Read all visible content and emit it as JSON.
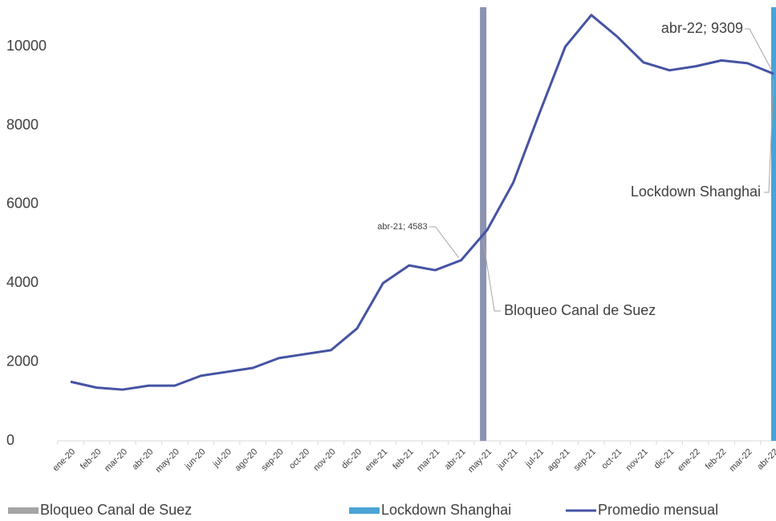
{
  "chart_data": {
    "type": "line",
    "categories": [
      "ene-20",
      "feb-20",
      "mar-20",
      "abr-20",
      "may-20",
      "jun-20",
      "jul-20",
      "ago-20",
      "sep-20",
      "oct-20",
      "nov-20",
      "dic-20",
      "ene-21",
      "feb-21",
      "mar-21",
      "abr-21",
      "may-21",
      "jun-21",
      "jul-21",
      "ago-21",
      "sep-21",
      "oct-21",
      "nov-21",
      "dic-21",
      "ene-22",
      "feb-22",
      "mar-22",
      "abr-22"
    ],
    "series": [
      {
        "name": "Bloqueo Canal de Suez",
        "type": "bar",
        "color": "#8a93b0",
        "legend_color": "#a5a5a5",
        "values": [
          null,
          null,
          null,
          null,
          null,
          null,
          null,
          null,
          null,
          null,
          null,
          null,
          null,
          null,
          null,
          null,
          11000,
          null,
          null,
          null,
          null,
          null,
          null,
          null,
          null,
          null,
          null,
          null
        ],
        "annotation": "Bloqueo Canal de Suez"
      },
      {
        "name": "Lockdown Shanghai",
        "type": "bar",
        "color": "#4aa3d6",
        "values": [
          null,
          null,
          null,
          null,
          null,
          null,
          null,
          null,
          null,
          null,
          null,
          null,
          null,
          null,
          null,
          null,
          null,
          null,
          null,
          null,
          null,
          null,
          null,
          null,
          null,
          null,
          null,
          11000
        ],
        "annotation": "Lockdown Shanghai"
      },
      {
        "name": "Promedio mensual",
        "type": "line",
        "color": "#4553a3",
        "values": [
          1500,
          1350,
          1300,
          1400,
          1400,
          1650,
          1750,
          1850,
          2100,
          2200,
          2300,
          2850,
          4000,
          4450,
          4330,
          4583,
          5350,
          6550,
          8300,
          10000,
          10800,
          10250,
          9600,
          9400,
          9500,
          9650,
          9580,
          9309
        ],
        "value_labels": [
          null,
          null,
          null,
          null,
          null,
          null,
          null,
          null,
          null,
          null,
          null,
          null,
          null,
          null,
          null,
          "abr-21; 4583",
          null,
          null,
          null,
          null,
          null,
          null,
          null,
          null,
          null,
          null,
          null,
          "abr-22; 9309"
        ]
      }
    ],
    "ylim": [
      0,
      11000
    ],
    "yticks": [
      0,
      2000,
      4000,
      6000,
      8000,
      10000
    ],
    "grid": false
  }
}
